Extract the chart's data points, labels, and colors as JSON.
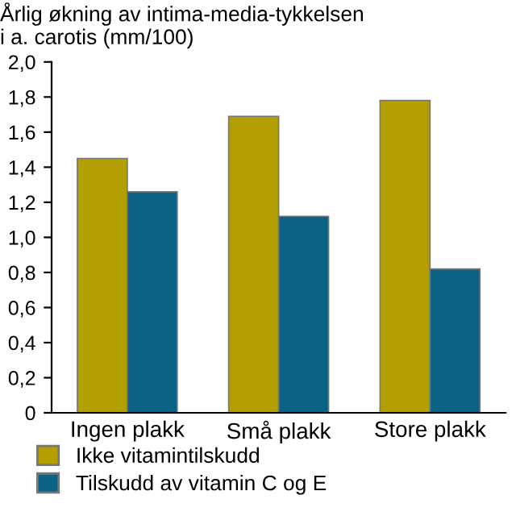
{
  "chart_data": {
    "type": "bar",
    "title": "Årlig økning av intima-media-tykkelsen\ni a. carotis (mm/100)",
    "categories": [
      "Ingen plakk",
      "Små plakk",
      "Store plakk"
    ],
    "series": [
      {
        "name": "Ikke vitamintilskudd",
        "color": "#b3a000",
        "values": [
          1.45,
          1.69,
          1.78
        ]
      },
      {
        "name": "Tilskudd av vitamin C og E",
        "color": "#0b6285",
        "values": [
          1.26,
          1.12,
          0.82
        ]
      }
    ],
    "ylim": [
      0,
      2.0
    ],
    "yticks": [
      0,
      {
        "value": 0.2,
        "label": "0,2"
      },
      {
        "value": 0.4,
        "label": "0,4"
      },
      {
        "value": 0.6,
        "label": "0,6"
      },
      {
        "value": 0.8,
        "label": "0,8"
      },
      {
        "value": 1.0,
        "label": "1,0"
      },
      {
        "value": 1.2,
        "label": "1,2"
      },
      {
        "value": 1.4,
        "label": "1,4"
      },
      {
        "value": 1.6,
        "label": "1,6"
      },
      {
        "value": 1.8,
        "label": "1,8"
      },
      {
        "value": 2.0,
        "label": "2,0"
      }
    ],
    "grid": false,
    "legend": "bottom"
  }
}
